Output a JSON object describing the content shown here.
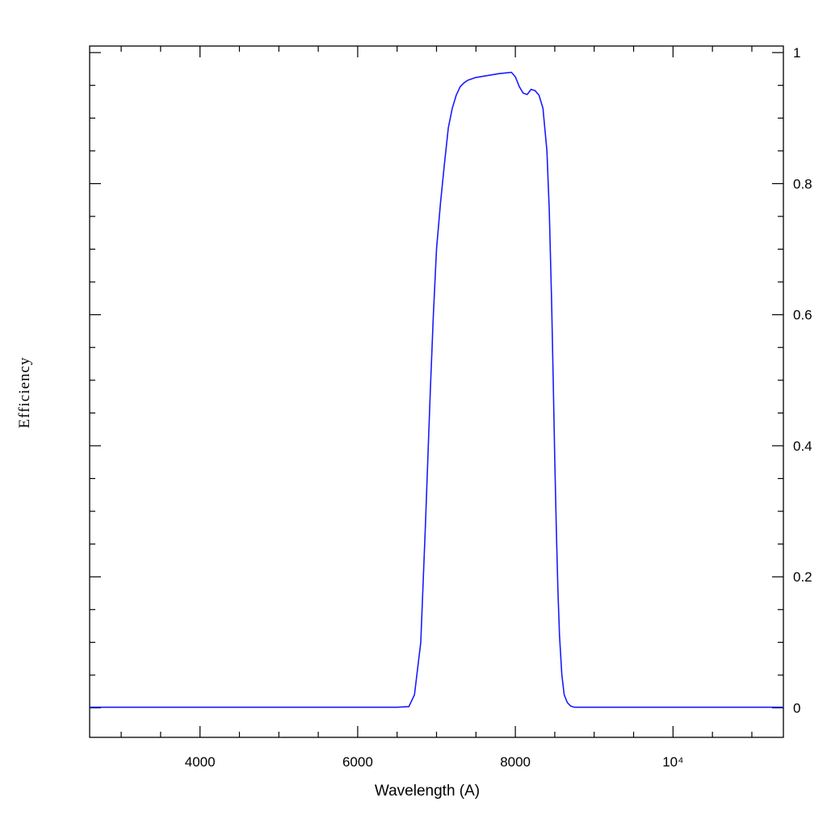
{
  "chart_data": {
    "type": "line",
    "xlabel": "Wavelength (A)",
    "ylabel": "Efficiency",
    "xlim": [
      2600,
      11400
    ],
    "ylim": [
      -0.045,
      1.01
    ],
    "x_ticks": [
      {
        "value": 4000,
        "label": "4000"
      },
      {
        "value": 6000,
        "label": "6000"
      },
      {
        "value": 8000,
        "label": "8000"
      },
      {
        "value": 10000,
        "label": "10⁴"
      }
    ],
    "y_ticks": [
      {
        "value": 0,
        "label": "0"
      },
      {
        "value": 0.2,
        "label": "0.2"
      },
      {
        "value": 0.4,
        "label": "0.4"
      },
      {
        "value": 0.6,
        "label": "0.6"
      },
      {
        "value": 0.8,
        "label": "0.8"
      },
      {
        "value": 1,
        "label": "1"
      }
    ],
    "series": [
      {
        "color": "#1a1aff",
        "x": [
          2600,
          3500,
          4500,
          5500,
          6500,
          6650,
          6720,
          6800,
          6860,
          6920,
          6960,
          7000,
          7050,
          7100,
          7150,
          7200,
          7250,
          7300,
          7350,
          7400,
          7500,
          7600,
          7700,
          7800,
          7880,
          7950,
          8000,
          8050,
          8100,
          8150,
          8200,
          8250,
          8300,
          8350,
          8400,
          8430,
          8460,
          8480,
          8500,
          8520,
          8540,
          8560,
          8590,
          8620,
          8660,
          8700,
          8750,
          8800,
          9000,
          10000,
          11000,
          11400
        ],
        "y": [
          0.001,
          0.001,
          0.001,
          0.001,
          0.001,
          0.002,
          0.02,
          0.1,
          0.28,
          0.48,
          0.6,
          0.7,
          0.77,
          0.83,
          0.885,
          0.915,
          0.935,
          0.948,
          0.954,
          0.958,
          0.962,
          0.964,
          0.966,
          0.968,
          0.969,
          0.97,
          0.963,
          0.948,
          0.938,
          0.936,
          0.944,
          0.942,
          0.935,
          0.915,
          0.85,
          0.76,
          0.62,
          0.5,
          0.38,
          0.27,
          0.18,
          0.11,
          0.05,
          0.02,
          0.008,
          0.003,
          0.001,
          0.001,
          0.001,
          0.001,
          0.001,
          0.001
        ]
      }
    ]
  }
}
